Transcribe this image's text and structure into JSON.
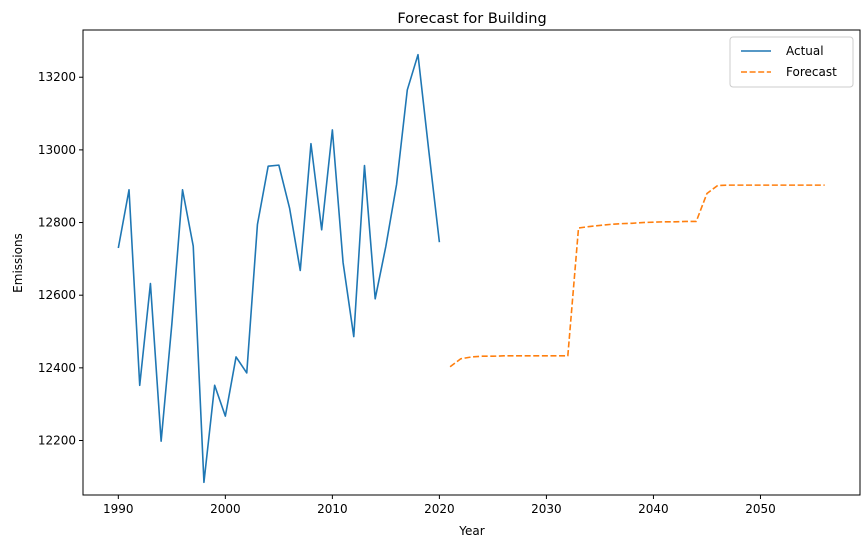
{
  "chart_data": {
    "type": "line",
    "title": "Forecast for Building",
    "xlabel": "Year",
    "ylabel": "Emissions",
    "xlim": [
      1986.7,
      2059.3
    ],
    "ylim": [
      12050,
      13330
    ],
    "xticks": [
      1990,
      2000,
      2010,
      2020,
      2030,
      2040,
      2050
    ],
    "yticks": [
      12200,
      12400,
      12600,
      12800,
      13000,
      13200
    ],
    "grid": false,
    "legend": "top-right",
    "series": [
      {
        "name": "Actual",
        "color": "#1f77b4",
        "style": "solid",
        "x": [
          1990,
          1991,
          1992,
          1993,
          1994,
          1995,
          1996,
          1997,
          1998,
          1999,
          2000,
          2001,
          2002,
          2003,
          2004,
          2005,
          2006,
          2007,
          2008,
          2009,
          2010,
          2011,
          2012,
          2013,
          2014,
          2015,
          2016,
          2017,
          2018,
          2019,
          2020
        ],
        "y": [
          12730,
          12890,
          12352,
          12632,
          12198,
          12520,
          12890,
          12735,
          12085,
          12352,
          12267,
          12430,
          12386,
          12795,
          12955,
          12958,
          12840,
          12668,
          13017,
          12780,
          13055,
          12690,
          12486,
          12957,
          12590,
          12735,
          12905,
          13165,
          13262,
          13000,
          12746
        ]
      },
      {
        "name": "Forecast",
        "color": "#ff7f0e",
        "style": "dashed",
        "x": [
          2021,
          2022,
          2023,
          2024,
          2025,
          2026,
          2027,
          2028,
          2029,
          2030,
          2031,
          2032,
          2033,
          2034,
          2035,
          2036,
          2037,
          2038,
          2039,
          2040,
          2041,
          2042,
          2043,
          2044,
          2045,
          2046,
          2047,
          2048,
          2049,
          2050,
          2051,
          2052,
          2053,
          2054,
          2055,
          2056
        ],
        "y": [
          12403,
          12425,
          12430,
          12432,
          12432,
          12433,
          12433,
          12433,
          12433,
          12433,
          12433,
          12433,
          12785,
          12789,
          12792,
          12795,
          12797,
          12798,
          12800,
          12801,
          12802,
          12802,
          12803,
          12803,
          12880,
          12902,
          12903,
          12903,
          12903,
          12903,
          12903,
          12903,
          12903,
          12903,
          12903,
          12903
        ]
      }
    ]
  }
}
